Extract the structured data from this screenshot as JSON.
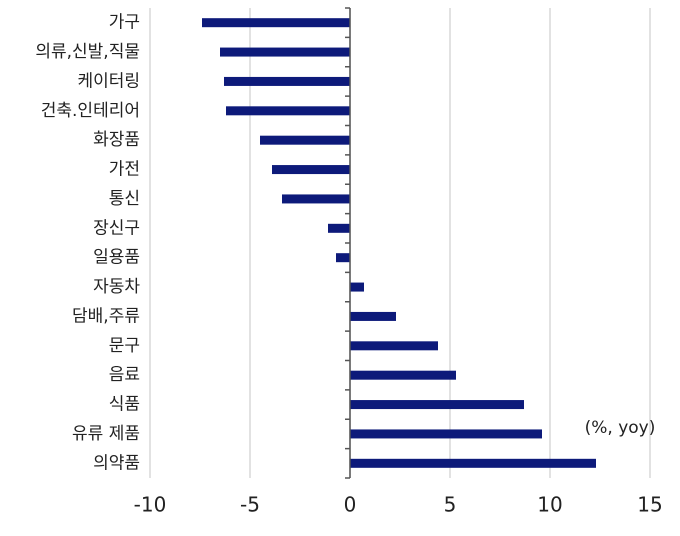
{
  "chart_data": {
    "type": "hbar",
    "categories": [
      "가구",
      "의류,신발,직물",
      "케이터링",
      "건축.인테리어",
      "화장품",
      "가전",
      "통신",
      "장신구",
      "일용품",
      "자동차",
      "담배,주류",
      "문구",
      "음료",
      "식품",
      "유류 제품",
      "의약품"
    ],
    "values": [
      -7.4,
      -6.5,
      -6.3,
      -6.2,
      -4.5,
      -3.9,
      -3.4,
      -1.1,
      -0.7,
      0.7,
      2.3,
      4.4,
      5.3,
      8.7,
      9.6,
      12.3
    ],
    "color": "#0d1a7a",
    "xlim": [
      -10,
      15
    ],
    "xticks": [
      -10,
      -5,
      0,
      5,
      10,
      15
    ],
    "grid": true,
    "annotation": "(%, yoy)"
  }
}
